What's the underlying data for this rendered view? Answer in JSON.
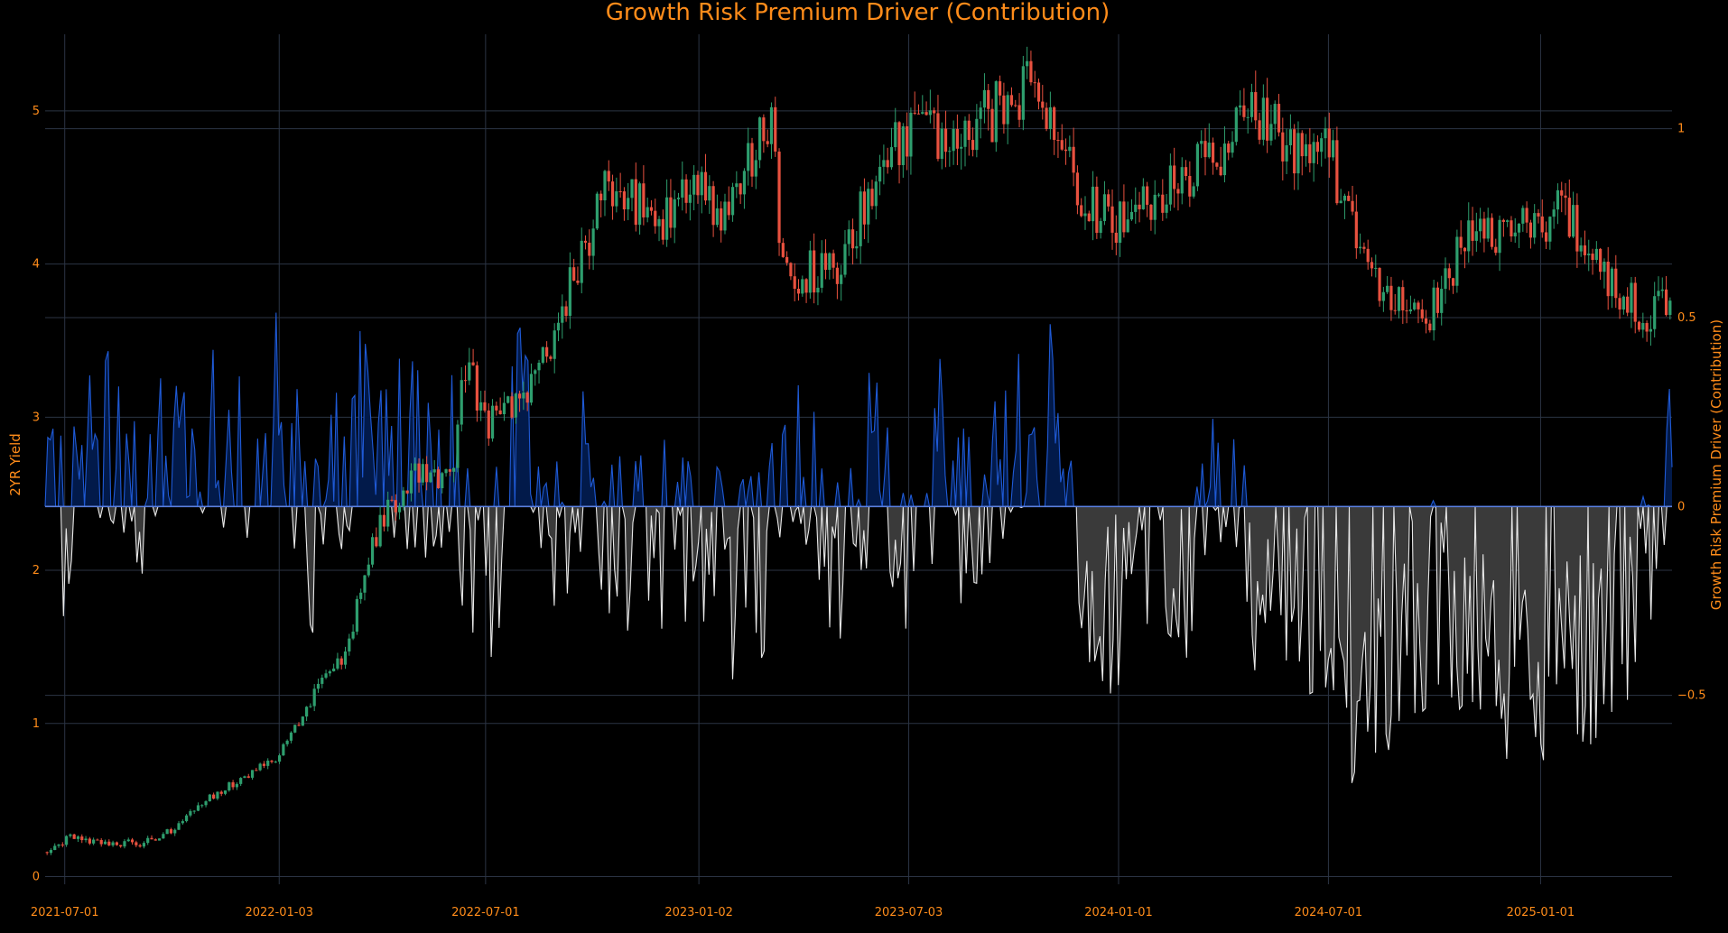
{
  "chart_data": {
    "type": "line",
    "title": "Growth Risk Premium Driver (Contribution)",
    "ylabel_left": "2YR Yield",
    "ylabel_right": "Growth Risk Premium Driver (Contribution)",
    "x_range": [
      "2021-06-14",
      "2025-04-25"
    ],
    "ylim_left": [
      -0.05,
      5.5
    ],
    "ylim_right": [
      -1.0,
      1.25
    ],
    "x_ticks": [
      "2021-07-01",
      "2022-01-03",
      "2022-07-01",
      "2023-01-02",
      "2023-07-03",
      "2024-01-01",
      "2024-07-01",
      "2025-01-01"
    ],
    "y_ticks_left": [
      "0",
      "1",
      "2",
      "3",
      "4",
      "5"
    ],
    "y_ticks_right": [
      "1",
      "0.5",
      "0",
      "−0.5"
    ],
    "grid": true,
    "background": "#000000",
    "colors": {
      "text": "#ff8c1a",
      "grid": "#2b3444",
      "candle_up": "#2e9e6e",
      "candle_down": "#e8513f",
      "positive_line": "#1f5ad6",
      "positive_fill": "#021a4a",
      "negative_line": "#e8e8e8",
      "negative_fill": "#3a3a3a",
      "zero_line": "#5a7fe0"
    },
    "series": [
      {
        "name": "2YR Yield",
        "axis": "left",
        "style": "candlestick",
        "x": [
          "2021-06-14",
          "2021-07-05",
          "2021-08-02",
          "2021-09-06",
          "2021-10-04",
          "2021-11-01",
          "2021-12-06",
          "2022-01-03",
          "2022-02-01",
          "2022-03-01",
          "2022-04-01",
          "2022-05-02",
          "2022-06-01",
          "2022-06-14",
          "2022-07-01",
          "2022-08-01",
          "2022-09-01",
          "2022-10-03",
          "2022-10-20",
          "2022-11-01",
          "2022-12-01",
          "2023-01-02",
          "2023-02-01",
          "2023-03-07",
          "2023-03-13",
          "2023-04-03",
          "2023-05-03",
          "2023-06-01",
          "2023-07-03",
          "2023-08-01",
          "2023-09-01",
          "2023-10-02",
          "2023-10-18",
          "2023-11-01",
          "2023-12-01",
          "2024-01-01",
          "2024-02-01",
          "2024-03-01",
          "2024-04-01",
          "2024-04-30",
          "2024-06-03",
          "2024-07-01",
          "2024-08-05",
          "2024-09-02",
          "2024-09-24",
          "2024-10-01",
          "2024-11-01",
          "2024-12-02",
          "2025-01-02",
          "2025-01-13",
          "2025-02-03",
          "2025-03-03",
          "2025-04-04",
          "2025-04-25"
        ],
        "values": [
          0.16,
          0.26,
          0.21,
          0.22,
          0.31,
          0.5,
          0.66,
          0.79,
          1.17,
          1.45,
          2.35,
          2.62,
          2.55,
          3.4,
          2.95,
          3.1,
          3.6,
          4.3,
          4.55,
          4.45,
          4.3,
          4.45,
          4.35,
          5.05,
          3.98,
          3.95,
          4.0,
          4.5,
          4.9,
          4.85,
          4.95,
          5.05,
          5.2,
          5.05,
          4.4,
          4.25,
          4.4,
          4.55,
          4.75,
          5.0,
          4.75,
          4.75,
          3.9,
          3.7,
          3.55,
          3.75,
          4.2,
          4.15,
          4.28,
          4.35,
          4.2,
          3.9,
          3.65,
          3.75
        ]
      },
      {
        "name": "Growth Risk Premium Driver (Contribution)",
        "axis": "right",
        "style": "area",
        "x": [
          "2021-06-14",
          "2021-07-01",
          "2021-08-01",
          "2021-09-01",
          "2021-10-01",
          "2021-11-01",
          "2021-12-01",
          "2022-01-01",
          "2022-02-01",
          "2022-03-01",
          "2022-04-01",
          "2022-05-01",
          "2022-06-01",
          "2022-07-01",
          "2022-08-01",
          "2022-09-01",
          "2022-10-01",
          "2022-11-01",
          "2022-12-01",
          "2023-01-01",
          "2023-02-01",
          "2023-03-01",
          "2023-04-01",
          "2023-05-01",
          "2023-06-01",
          "2023-07-01",
          "2023-08-01",
          "2023-09-01",
          "2023-10-01",
          "2023-11-01",
          "2023-12-01",
          "2024-01-01",
          "2024-02-01",
          "2024-03-01",
          "2024-04-01",
          "2024-05-01",
          "2024-06-01",
          "2024-07-01",
          "2024-08-01",
          "2024-09-01",
          "2024-10-01",
          "2024-11-01",
          "2024-12-01",
          "2025-01-01",
          "2025-02-01",
          "2025-03-01",
          "2025-04-01",
          "2025-04-25"
        ],
        "values": [
          0.15,
          -0.1,
          0.2,
          -0.05,
          0.25,
          0.2,
          0.1,
          0.3,
          -0.1,
          0.15,
          0.25,
          0.1,
          0.15,
          -0.35,
          0.3,
          -0.1,
          0.08,
          -0.15,
          -0.05,
          -0.1,
          -0.2,
          -0.15,
          0.1,
          -0.2,
          0.12,
          -0.15,
          0.15,
          -0.1,
          0.2,
          0.25,
          -0.2,
          -0.25,
          -0.15,
          -0.3,
          0.1,
          -0.2,
          -0.25,
          -0.4,
          -0.55,
          -0.3,
          -0.25,
          -0.35,
          -0.4,
          -0.45,
          -0.35,
          -0.4,
          -0.2,
          0.15
        ]
      }
    ]
  }
}
